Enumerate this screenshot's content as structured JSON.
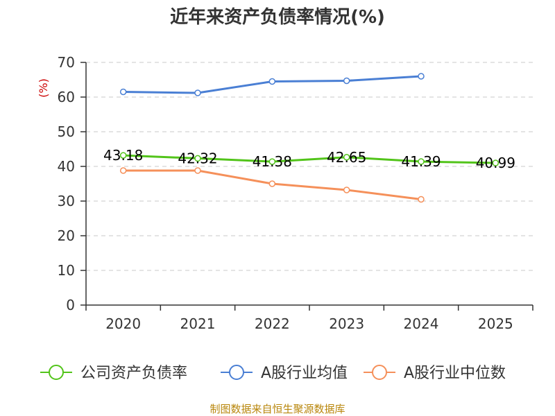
{
  "chart_data": {
    "type": "line",
    "title": "近年来资产负债率情况(%)",
    "ylabel": "(%)",
    "xlabel": "",
    "ylim": [
      0,
      70
    ],
    "yticks": [
      0,
      10,
      20,
      30,
      40,
      50,
      60,
      70
    ],
    "categories": [
      "2020",
      "2021",
      "2022",
      "2023",
      "2024",
      "2025"
    ],
    "grid": true,
    "legend_position": "bottom",
    "series": [
      {
        "name": "公司资产负债率",
        "color": "#52c41a",
        "values": [
          43.18,
          42.32,
          41.38,
          42.65,
          41.39,
          40.99
        ],
        "labels": [
          "43.18",
          "42.32",
          "41.38",
          "42.65",
          "41.39",
          "40.99"
        ]
      },
      {
        "name": "A股行业均值",
        "color": "#4a7fd4",
        "values": [
          61.5,
          61.2,
          64.5,
          64.7,
          66.0,
          null
        ]
      },
      {
        "name": "A股行业中位数",
        "color": "#f5905a",
        "values": [
          38.8,
          38.8,
          35.0,
          33.2,
          30.5,
          null
        ]
      }
    ],
    "source": "制图数据来自恒生聚源数据库"
  }
}
